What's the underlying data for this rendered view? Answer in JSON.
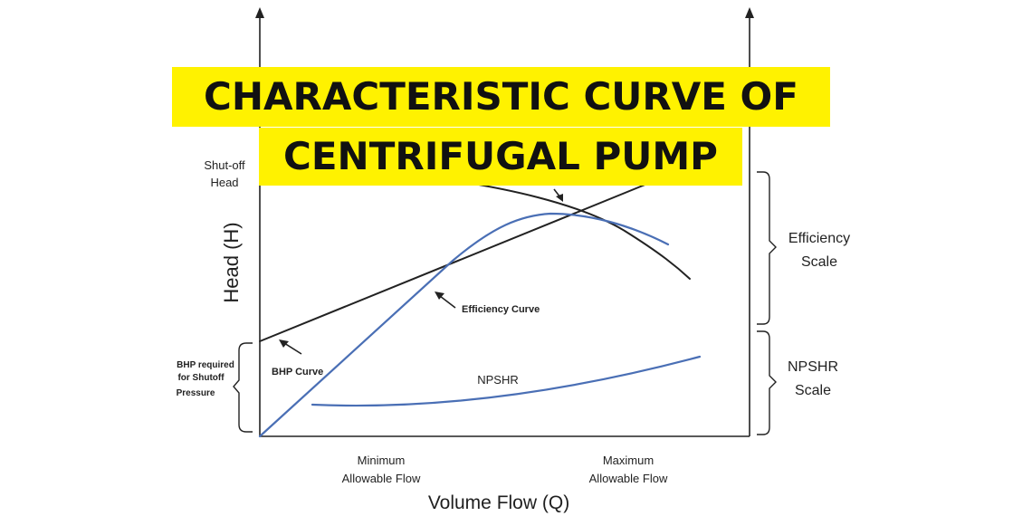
{
  "title": {
    "line1": "CHARACTERISTIC CURVE OF",
    "line2": "CENTRIFUGAL PUMP"
  },
  "axes": {
    "y_label": "Head (H)",
    "x_label": "Volume Flow (Q)"
  },
  "left_labels": {
    "shutoff_head_1": "Shut-off",
    "shutoff_head_2": "Head",
    "bhp_required_1": "BHP required",
    "bhp_required_2": "for Shutoff",
    "bhp_required_3": "Pressure"
  },
  "right_labels": {
    "efficiency_scale_1": "Efficiency",
    "efficiency_scale_2": "Scale",
    "npshr_scale_1": "NPSHR",
    "npshr_scale_2": "Scale"
  },
  "x_markers": {
    "min_flow_1": "Minimum",
    "min_flow_2": "Allowable Flow",
    "max_flow_1": "Maximum",
    "max_flow_2": "Allowable Flow"
  },
  "curve_labels": {
    "efficiency": "Efficiency Curve",
    "bhp": "BHP Curve",
    "npshr": "NPSHR"
  },
  "colors": {
    "banner_bg": "#fff200",
    "banner_text": "#111111",
    "axis": "#222222",
    "curve_blue": "#4a6fb5",
    "curve_black": "#222222"
  }
}
